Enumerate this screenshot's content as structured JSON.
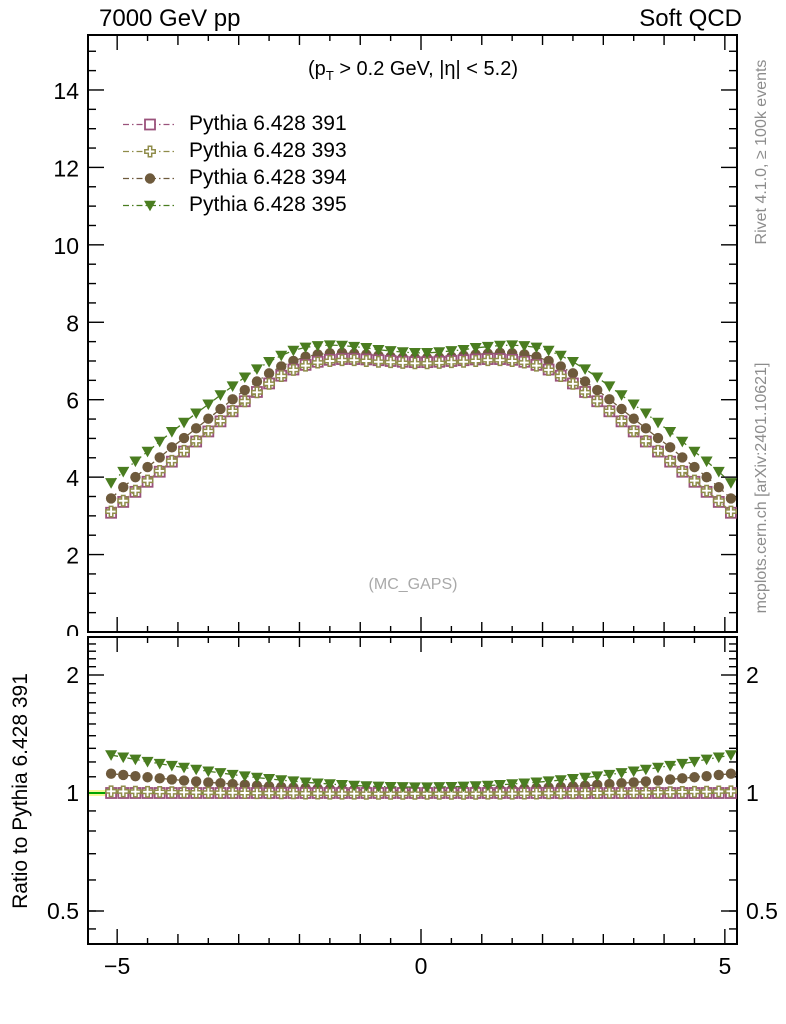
{
  "header": {
    "title_left": "7000 GeV pp",
    "title_right": "Soft QCD"
  },
  "annotation": {
    "pre": "(p",
    "sub": "T",
    "post": " > 0.2 GeV, |η| < 5.2)"
  },
  "watermark": "(MC_GAPS)",
  "ratio_label": "Ratio to Pythia 6.428 391",
  "credits": {
    "rivet": "Rivet 4.1.0, ≥ 100k events",
    "mcplots": "mcplots.cern.ch [arXiv:2401.10621]"
  },
  "legend": [
    {
      "label": "Pythia 6.428 391",
      "marker": "open-square",
      "color": "#9a527b"
    },
    {
      "label": "Pythia 6.428 393",
      "marker": "open-cross",
      "color": "#8f8c4a"
    },
    {
      "label": "Pythia 6.428 394",
      "marker": "filled-circle",
      "color": "#6e5a3c"
    },
    {
      "label": "Pythia 6.428 395",
      "marker": "filled-triangle-down",
      "color": "#4a7d20"
    }
  ],
  "chart_data": {
    "type": "line",
    "title": "7000 GeV pp",
    "subtitle": "Soft QCD",
    "xlabel": "",
    "ylabel": "",
    "ratio_ylabel": "Ratio to Pythia 6.428 391",
    "x_axis": {
      "lim": [
        -5.48,
        5.2
      ],
      "minor_step": 0.5,
      "major_step": 1,
      "labeled": [
        {
          "v": -5,
          "label": "−5"
        },
        {
          "v": 0,
          "label": "0"
        },
        {
          "v": 5,
          "label": "5"
        }
      ]
    },
    "top_axis": {
      "ylim": [
        0,
        15.42
      ],
      "yticks": [
        0,
        2,
        4,
        6,
        8,
        10,
        12,
        14
      ],
      "minor_step": 0.5,
      "grid": false
    },
    "ratio_axis": {
      "scale": "log",
      "ylim": [
        0.41,
        2.5
      ],
      "ticks": [
        {
          "v": 2,
          "label": "2"
        },
        {
          "v": 1,
          "label": "1"
        },
        {
          "v": 0.5,
          "label": "0.5"
        }
      ],
      "minor": [
        0.45,
        0.5,
        0.6,
        0.7,
        0.8,
        0.9,
        1.1,
        1.2,
        1.3,
        1.4,
        1.5,
        1.6,
        1.7,
        1.8,
        1.9,
        2.1,
        2.2,
        2.3,
        2.4
      ]
    },
    "ref_line": {
      "value": 1,
      "color": "#00a400",
      "band_color": "#f7f79a"
    },
    "legend_position": "top-left",
    "x": [
      -5.1,
      -4.9,
      -4.7,
      -4.5,
      -4.3,
      -4.1,
      -3.9,
      -3.7,
      -3.5,
      -3.3,
      -3.1,
      -2.9,
      -2.7,
      -2.5,
      -2.3,
      -2.1,
      -1.9,
      -1.7,
      -1.5,
      -1.3,
      -1.1,
      -0.9,
      -0.7,
      -0.5,
      -0.3,
      -0.1,
      0.1,
      0.3,
      0.5,
      0.7,
      0.9,
      1.1,
      1.3,
      1.5,
      1.7,
      1.9,
      2.1,
      2.3,
      2.5,
      2.7,
      2.9,
      3.1,
      3.3,
      3.5,
      3.7,
      3.9,
      4.1,
      4.3,
      4.5,
      4.7,
      4.9,
      5.1
    ],
    "series": [
      {
        "name": "Pythia 6.428 391",
        "marker": "open-square",
        "color": "#9a527b",
        "values": [
          3.08,
          3.36,
          3.62,
          3.88,
          4.14,
          4.4,
          4.66,
          4.92,
          5.18,
          5.44,
          5.7,
          5.96,
          6.2,
          6.42,
          6.62,
          6.78,
          6.9,
          6.98,
          7.03,
          7.05,
          7.05,
          7.04,
          7.02,
          7.0,
          6.98,
          6.97,
          6.97,
          6.98,
          7.0,
          7.02,
          7.04,
          7.05,
          7.05,
          7.03,
          6.98,
          6.9,
          6.78,
          6.62,
          6.42,
          6.2,
          5.96,
          5.7,
          5.44,
          5.18,
          4.92,
          4.66,
          4.4,
          4.14,
          3.88,
          3.62,
          3.36,
          3.08
        ]
      },
      {
        "name": "Pythia 6.428 393",
        "marker": "open-cross",
        "color": "#8f8c4a",
        "values": [
          3.11,
          3.39,
          3.65,
          3.91,
          4.16,
          4.42,
          4.68,
          4.93,
          5.19,
          5.45,
          5.71,
          5.96,
          6.19,
          6.41,
          6.61,
          6.77,
          6.88,
          6.96,
          7.0,
          7.02,
          7.02,
          7.0,
          6.98,
          6.97,
          6.95,
          6.94,
          6.94,
          6.95,
          6.97,
          6.98,
          7.0,
          7.02,
          7.02,
          7.0,
          6.96,
          6.88,
          6.77,
          6.61,
          6.41,
          6.19,
          5.96,
          5.71,
          5.45,
          5.19,
          4.93,
          4.68,
          4.42,
          4.16,
          3.91,
          3.65,
          3.39,
          3.11
        ]
      },
      {
        "name": "Pythia 6.428 394",
        "marker": "filled-circle",
        "color": "#6e5a3c",
        "values": [
          3.45,
          3.74,
          4.0,
          4.26,
          4.51,
          4.77,
          5.01,
          5.26,
          5.51,
          5.76,
          6.01,
          6.25,
          6.47,
          6.68,
          6.86,
          7.0,
          7.11,
          7.17,
          7.2,
          7.21,
          7.19,
          7.17,
          7.14,
          7.11,
          7.09,
          7.08,
          7.08,
          7.09,
          7.11,
          7.14,
          7.17,
          7.19,
          7.21,
          7.2,
          7.17,
          7.11,
          7.0,
          6.86,
          6.68,
          6.47,
          6.25,
          6.01,
          5.76,
          5.51,
          5.26,
          5.01,
          4.77,
          4.51,
          4.26,
          4.0,
          3.74,
          3.45
        ]
      },
      {
        "name": "Pythia 6.428 395",
        "marker": "filled-triangle-down",
        "color": "#4a7d20",
        "values": [
          3.85,
          4.14,
          4.41,
          4.66,
          4.92,
          5.17,
          5.41,
          5.65,
          5.88,
          6.12,
          6.35,
          6.58,
          6.79,
          6.98,
          7.14,
          7.27,
          7.35,
          7.39,
          7.41,
          7.4,
          7.37,
          7.34,
          7.29,
          7.26,
          7.23,
          7.21,
          7.21,
          7.23,
          7.26,
          7.29,
          7.34,
          7.37,
          7.4,
          7.41,
          7.39,
          7.35,
          7.27,
          7.14,
          6.98,
          6.79,
          6.58,
          6.35,
          6.12,
          5.88,
          5.65,
          5.41,
          5.17,
          4.92,
          4.66,
          4.41,
          4.14,
          3.85
        ]
      }
    ],
    "ratio_series": [
      {
        "name": "Pythia 6.428 391",
        "marker": "open-square",
        "color": "#9a527b",
        "values": [
          1,
          1,
          1,
          1,
          1,
          1,
          1,
          1,
          1,
          1,
          1,
          1,
          1,
          1,
          1,
          1,
          1,
          1,
          1,
          1,
          1,
          1,
          1,
          1,
          1,
          1,
          1,
          1,
          1,
          1,
          1,
          1,
          1,
          1,
          1,
          1,
          1,
          1,
          1,
          1,
          1,
          1,
          1,
          1,
          1,
          1,
          1,
          1,
          1,
          1,
          1,
          1
        ]
      },
      {
        "name": "Pythia 6.428 393",
        "marker": "open-cross",
        "color": "#8f8c4a",
        "values": [
          1.01,
          1.009,
          1.008,
          1.007,
          1.006,
          1.005,
          1.004,
          1.003,
          1.002,
          1.001,
          1.001,
          1.0,
          0.999,
          0.999,
          0.998,
          0.998,
          0.997,
          0.997,
          0.996,
          0.996,
          0.996,
          0.995,
          0.995,
          0.995,
          0.995,
          0.995,
          0.995,
          0.995,
          0.995,
          0.995,
          0.995,
          0.996,
          0.996,
          0.996,
          0.997,
          0.997,
          0.998,
          0.998,
          0.999,
          0.999,
          1.0,
          1.001,
          1.001,
          1.002,
          1.003,
          1.004,
          1.005,
          1.006,
          1.007,
          1.008,
          1.009,
          1.01
        ]
      },
      {
        "name": "Pythia 6.428 394",
        "marker": "filled-circle",
        "color": "#6e5a3c",
        "values": [
          1.12,
          1.112,
          1.104,
          1.097,
          1.09,
          1.083,
          1.076,
          1.07,
          1.064,
          1.059,
          1.054,
          1.049,
          1.044,
          1.04,
          1.036,
          1.033,
          1.03,
          1.027,
          1.024,
          1.022,
          1.02,
          1.018,
          1.017,
          1.016,
          1.015,
          1.015,
          1.015,
          1.015,
          1.016,
          1.017,
          1.018,
          1.02,
          1.022,
          1.024,
          1.027,
          1.03,
          1.033,
          1.036,
          1.04,
          1.044,
          1.049,
          1.054,
          1.059,
          1.064,
          1.07,
          1.076,
          1.083,
          1.09,
          1.097,
          1.104,
          1.112,
          1.12
        ]
      },
      {
        "name": "Pythia 6.428 395",
        "marker": "filled-triangle-down",
        "color": "#4a7d20",
        "values": [
          1.25,
          1.233,
          1.218,
          1.202,
          1.188,
          1.174,
          1.161,
          1.148,
          1.136,
          1.125,
          1.114,
          1.104,
          1.095,
          1.087,
          1.079,
          1.072,
          1.065,
          1.059,
          1.054,
          1.049,
          1.045,
          1.042,
          1.039,
          1.037,
          1.036,
          1.035,
          1.035,
          1.036,
          1.037,
          1.039,
          1.042,
          1.045,
          1.049,
          1.054,
          1.059,
          1.065,
          1.072,
          1.079,
          1.087,
          1.095,
          1.104,
          1.114,
          1.125,
          1.136,
          1.148,
          1.161,
          1.174,
          1.188,
          1.202,
          1.218,
          1.233,
          1.25
        ]
      }
    ]
  }
}
